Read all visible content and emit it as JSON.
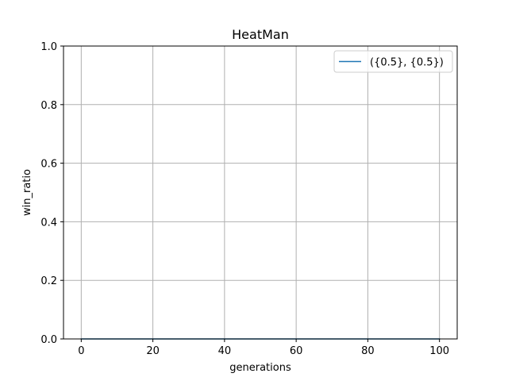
{
  "chart_data": {
    "type": "line",
    "title": "HeatMan",
    "xlabel": "generations",
    "ylabel": "win_ratio",
    "xlim": [
      -4.95,
      104.95
    ],
    "ylim": [
      0.0,
      1.0
    ],
    "xticks": [
      0,
      20,
      40,
      60,
      80,
      100
    ],
    "xtick_labels": [
      "0",
      "20",
      "40",
      "60",
      "80",
      "100"
    ],
    "yticks": [
      0.0,
      0.2,
      0.4,
      0.6,
      0.8,
      1.0
    ],
    "ytick_labels": [
      "0.0",
      "0.2",
      "0.4",
      "0.6",
      "0.8",
      "1.0"
    ],
    "grid": true,
    "legend_position": "top-right",
    "series": [
      {
        "name": "({0.5}, {0.5})",
        "color": "#1f77b4",
        "x": [
          0,
          10,
          20,
          30,
          40,
          50,
          60,
          70,
          80,
          90,
          100
        ],
        "y": [
          0,
          0,
          0,
          0,
          0,
          0,
          0,
          0,
          0,
          0,
          0
        ]
      }
    ]
  }
}
